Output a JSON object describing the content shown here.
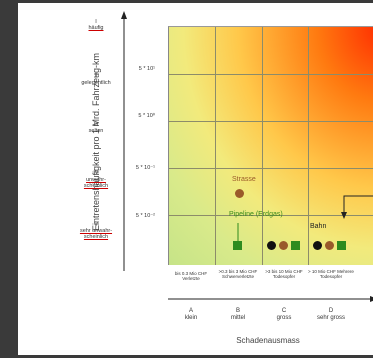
{
  "y_axis_label": "Eintretenshäufigkeit pro 1 Mrd. Fahrzeug-km",
  "x_axis_label": "Schadenausmass",
  "rows": [
    {
      "roman": "I",
      "word": "häufig",
      "underline": true,
      "tick": ""
    },
    {
      "roman": "II",
      "word": "gelegentlich",
      "underline": false,
      "tick": "5 * 10¹"
    },
    {
      "roman": "III",
      "word": "selten",
      "underline": false,
      "tick": "5 * 10⁰"
    },
    {
      "roman": "IV",
      "word": "unwahr-scheinlich",
      "underline": true,
      "tick": "5 * 10⁻¹"
    },
    {
      "roman": "V",
      "word": "sehr unwahr-scheinlich",
      "underline": true,
      "tick": "5 * 10⁻²"
    }
  ],
  "columns": [
    {
      "range": "bis 0.3 Mio CHF Verletzte",
      "letter": "A",
      "word": "klein"
    },
    {
      "range": ">0.3 bis 3 Mio CHF Schwerverletzte",
      "letter": "B",
      "word": "mittel"
    },
    {
      "range": ">3 bis 10 Mio CHF Todesopfer",
      "letter": "C",
      "word": "gross"
    },
    {
      "range": "> 10 Mio CHF Mehrere Todesopfer",
      "letter": "D",
      "word": "sehr gross"
    }
  ],
  "series_labels": {
    "street": "Strasse",
    "pipeline": "Pipeline (Erdgas)",
    "rail": "Bahn"
  },
  "colors": {
    "street": "#9a5a2a",
    "pipeline": "#2e8b1e",
    "rail": "#111111",
    "grid_high": "#ff2a00",
    "grid_low": "#c6e488"
  }
}
